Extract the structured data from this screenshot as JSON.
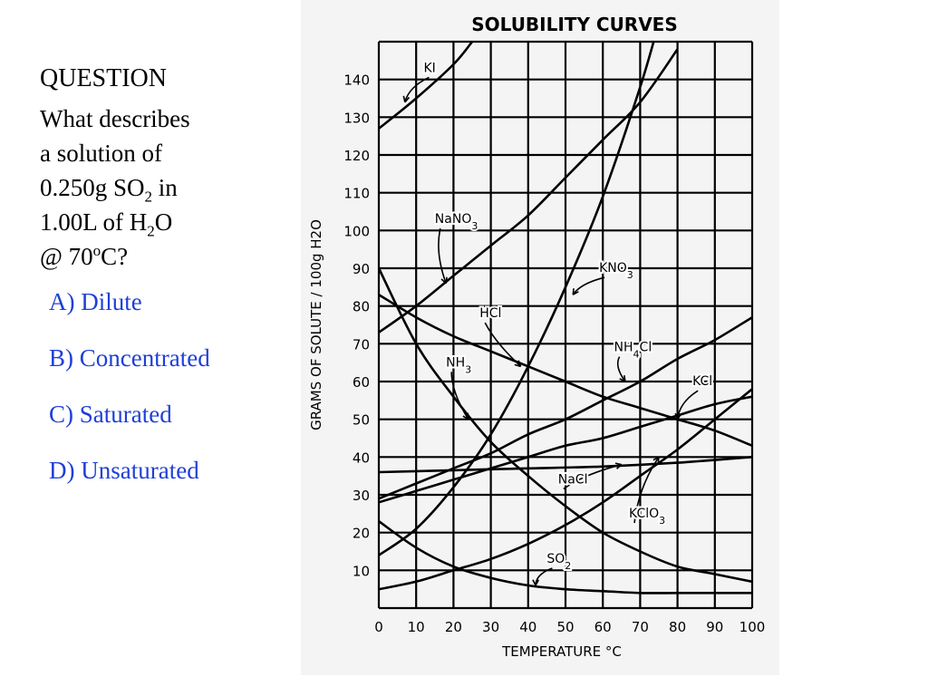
{
  "question": {
    "heading": "QUESTION",
    "line1": "What describes",
    "line2": "a solution of",
    "line3_a": "0.250g SO",
    "line3_sub": "2",
    "line3_b": " in",
    "line4_a": "1.00L of H",
    "line4_sub": "2",
    "line4_b": "O",
    "line5_a": "@ 70",
    "line5_sup": "o",
    "line5_b": "C?",
    "options": [
      {
        "label": "A) Dilute"
      },
      {
        "label": "B) Concentrated"
      },
      {
        "label": "C) Saturated"
      },
      {
        "label": "D) Unsaturated"
      }
    ],
    "option_color": "#1f3fd6"
  },
  "chart_data": {
    "type": "line",
    "title": "SOLUBILITY CURVES",
    "xlabel": "TEMPERATURE  °C",
    "ylabel": "GRAMS OF SOLUTE / 100g H2O",
    "xlim": [
      0,
      100
    ],
    "ylim": [
      0,
      150
    ],
    "x_ticks": [
      "0",
      "10",
      "20",
      "30",
      "40",
      "50",
      "60",
      "70",
      "80",
      "90",
      "100"
    ],
    "y_ticks": [
      "10",
      "20",
      "30",
      "40",
      "50",
      "60",
      "70",
      "80",
      "90",
      "100",
      "110",
      "120",
      "130",
      "140"
    ],
    "grid": true,
    "line_color": "#000000",
    "series": [
      {
        "name": "KI",
        "label_parts": [
          [
            "KI",
            ""
          ]
        ],
        "points": [
          [
            0,
            127
          ],
          [
            10,
            135
          ],
          [
            20,
            144
          ],
          [
            25,
            150
          ]
        ]
      },
      {
        "name": "NaNO3",
        "label_parts": [
          [
            "NaNO",
            ""
          ],
          [
            "3",
            "sub"
          ]
        ],
        "points": [
          [
            0,
            73
          ],
          [
            10,
            80
          ],
          [
            20,
            88
          ],
          [
            30,
            96
          ],
          [
            40,
            104
          ],
          [
            50,
            114
          ],
          [
            60,
            124
          ],
          [
            70,
            134
          ],
          [
            80,
            148
          ]
        ]
      },
      {
        "name": "KNO3",
        "label_parts": [
          [
            "KNO",
            ""
          ],
          [
            "3",
            "sub"
          ]
        ],
        "points": [
          [
            0,
            14
          ],
          [
            10,
            21
          ],
          [
            20,
            32
          ],
          [
            30,
            46
          ],
          [
            40,
            64
          ],
          [
            50,
            85
          ],
          [
            60,
            109
          ],
          [
            70,
            138
          ],
          [
            75,
            155
          ]
        ]
      },
      {
        "name": "HCl",
        "label_parts": [
          [
            "HCl",
            ""
          ]
        ],
        "points": [
          [
            0,
            83
          ],
          [
            10,
            77
          ],
          [
            20,
            72
          ],
          [
            30,
            68
          ],
          [
            40,
            64
          ],
          [
            50,
            60
          ],
          [
            60,
            56
          ],
          [
            70,
            53
          ],
          [
            80,
            50
          ],
          [
            90,
            47
          ],
          [
            100,
            43
          ]
        ]
      },
      {
        "name": "NH3",
        "label_parts": [
          [
            "NH",
            ""
          ],
          [
            "3",
            "sub"
          ]
        ],
        "points": [
          [
            0,
            90
          ],
          [
            10,
            70
          ],
          [
            20,
            56
          ],
          [
            30,
            44
          ],
          [
            40,
            35
          ],
          [
            50,
            27
          ],
          [
            60,
            20
          ],
          [
            70,
            15
          ],
          [
            80,
            11
          ],
          [
            90,
            9
          ],
          [
            100,
            7
          ]
        ]
      },
      {
        "name": "NH4Cl",
        "label_parts": [
          [
            "NH",
            ""
          ],
          [
            "4",
            "sub"
          ],
          [
            "Cl",
            ""
          ]
        ],
        "points": [
          [
            0,
            29
          ],
          [
            10,
            33
          ],
          [
            20,
            37
          ],
          [
            30,
            41
          ],
          [
            40,
            46
          ],
          [
            50,
            50
          ],
          [
            60,
            55
          ],
          [
            70,
            60
          ],
          [
            80,
            66
          ],
          [
            90,
            71
          ],
          [
            100,
            77
          ]
        ]
      },
      {
        "name": "KCl",
        "label_parts": [
          [
            "KCl",
            ""
          ]
        ],
        "points": [
          [
            0,
            28
          ],
          [
            10,
            31
          ],
          [
            20,
            34
          ],
          [
            30,
            37
          ],
          [
            40,
            40
          ],
          [
            50,
            43
          ],
          [
            60,
            45
          ],
          [
            70,
            48
          ],
          [
            80,
            51
          ],
          [
            90,
            54
          ],
          [
            100,
            56
          ]
        ]
      },
      {
        "name": "NaCl",
        "label_parts": [
          [
            "NaCl",
            ""
          ]
        ],
        "points": [
          [
            0,
            36
          ],
          [
            20,
            36.5
          ],
          [
            40,
            37
          ],
          [
            60,
            37.5
          ],
          [
            80,
            38.5
          ],
          [
            100,
            40
          ]
        ]
      },
      {
        "name": "KClO3",
        "label_parts": [
          [
            "KClO",
            ""
          ],
          [
            "3",
            "sub"
          ]
        ],
        "points": [
          [
            0,
            5
          ],
          [
            10,
            7
          ],
          [
            20,
            10
          ],
          [
            30,
            13
          ],
          [
            40,
            17
          ],
          [
            50,
            22
          ],
          [
            60,
            28
          ],
          [
            70,
            35
          ],
          [
            80,
            42
          ],
          [
            90,
            50
          ],
          [
            100,
            58
          ]
        ]
      },
      {
        "name": "SO2",
        "label_parts": [
          [
            "SO",
            ""
          ],
          [
            "2",
            "sub"
          ]
        ],
        "points": [
          [
            0,
            23
          ],
          [
            10,
            16
          ],
          [
            20,
            11
          ],
          [
            30,
            8
          ],
          [
            40,
            6
          ],
          [
            50,
            5
          ],
          [
            60,
            4.5
          ],
          [
            70,
            4
          ],
          [
            80,
            4
          ],
          [
            90,
            4
          ],
          [
            100,
            4
          ]
        ]
      }
    ]
  }
}
